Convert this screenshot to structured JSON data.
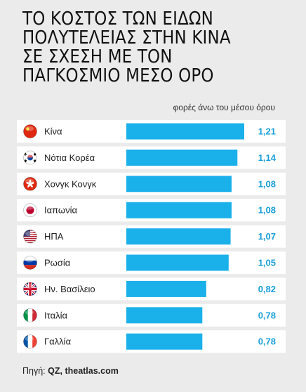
{
  "title_lines": [
    "ΤΟ ΚΟΣΤΟΣ ΤΩΝ ΕΙΔΩΝ",
    "ΠΟΛΥΤΕΛΕΙΑΣ ΣΤΗΝ ΚΙΝΑ",
    "ΣΕ ΣΧΕΣΗ ΜΕ ΤΟΝ",
    "ΠΑΓΚΟΣΜΙΟ ΜΕΣΟ ΟΡΟ"
  ],
  "unit_label": "φορές άνω του μέσου όρου",
  "source": {
    "prefix": "Πηγή:",
    "text": "QZ, theatlas.com"
  },
  "colors": {
    "background": "#ebebeb",
    "bar": "#1ab0ea",
    "row": "#ffffff",
    "value_text": "#1a9fd8"
  },
  "chart_data": {
    "type": "bar",
    "orientation": "horizontal",
    "categories": [
      "Κίνα",
      "Νότια Κορέα",
      "Χονγκ Κονγκ",
      "Ιαπωνία",
      "ΗΠΑ",
      "Ρωσία",
      "Ην. Βασίλειο",
      "Ιταλία",
      "Γαλλία"
    ],
    "values": [
      1.21,
      1.14,
      1.08,
      1.08,
      1.07,
      1.05,
      0.82,
      0.78,
      0.78
    ],
    "value_labels": [
      "1,21",
      "1,14",
      "1,08",
      "1,08",
      "1,07",
      "1,05",
      "0,82",
      "0,78",
      "0,78"
    ],
    "flag_icons": [
      "china-flag-icon",
      "south-korea-flag-icon",
      "hong-kong-flag-icon",
      "japan-flag-icon",
      "usa-flag-icon",
      "russia-flag-icon",
      "uk-flag-icon",
      "italy-flag-icon",
      "france-flag-icon"
    ],
    "xlim": [
      0,
      1.21
    ],
    "title": "ΤΟ ΚΟΣΤΟΣ ΤΩΝ ΕΙΔΩΝ ΠΟΛΥΤΕΛΕΙΑΣ ΣΤΗΝ ΚΙΝΑ ΣΕ ΣΧΕΣΗ ΜΕ ΤΟΝ ΠΑΓΚΟΣΜΙΟ ΜΕΣΟ ΟΡΟ",
    "xlabel": "φορές άνω του μέσου όρου",
    "ylabel": "",
    "grid": false,
    "legend": "none"
  }
}
